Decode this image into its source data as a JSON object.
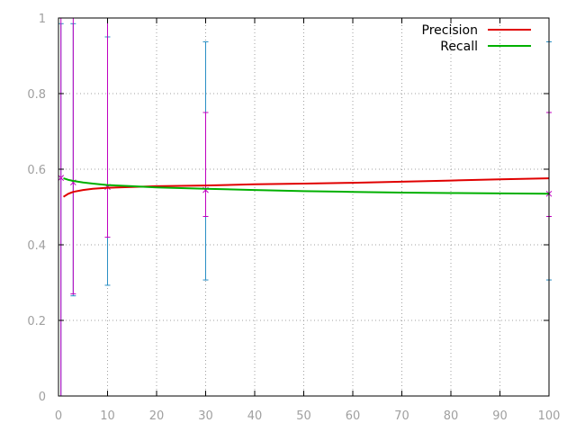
{
  "chart_data": {
    "type": "line",
    "title": "",
    "xlabel": "",
    "ylabel": "",
    "xlim": [
      0,
      100
    ],
    "ylim": [
      0,
      1
    ],
    "x_ticks": [
      0,
      10,
      20,
      30,
      40,
      50,
      60,
      70,
      80,
      90,
      100
    ],
    "y_ticks": [
      0,
      0.2,
      0.4,
      0.6,
      0.8,
      1
    ],
    "x_tick_labels": [
      "0",
      "10",
      "20",
      "30",
      "40",
      "50",
      "60",
      "70",
      "80",
      "90",
      "100"
    ],
    "y_tick_labels": [
      "0",
      "0.2",
      "0.4",
      "0.6",
      "0.8",
      "1"
    ],
    "grid": true,
    "grid_style": "dotted",
    "legend_position": "top-right",
    "series": [
      {
        "name": "Precision",
        "color": "#e00000",
        "x": [
          1,
          2,
          3,
          5,
          7,
          10,
          15,
          20,
          30,
          40,
          50,
          60,
          70,
          80,
          90,
          100
        ],
        "y": [
          0.527,
          0.535,
          0.54,
          0.545,
          0.548,
          0.551,
          0.553,
          0.555,
          0.557,
          0.56,
          0.562,
          0.564,
          0.567,
          0.57,
          0.573,
          0.576
        ]
      },
      {
        "name": "Recall",
        "color": "#00b000",
        "x": [
          1,
          2,
          3,
          5,
          7,
          10,
          15,
          20,
          30,
          40,
          50,
          60,
          70,
          80,
          90,
          100
        ],
        "y": [
          0.576,
          0.572,
          0.569,
          0.565,
          0.562,
          0.558,
          0.555,
          0.552,
          0.548,
          0.545,
          0.542,
          0.54,
          0.538,
          0.537,
          0.536,
          0.535
        ]
      }
    ],
    "error_bars": [
      {
        "color": "#2a8fc4",
        "points": [
          {
            "x": 0.5,
            "low": 0.0,
            "high": 0.985
          },
          {
            "x": 3,
            "low": 0.265,
            "high": 0.985
          },
          {
            "x": 10,
            "low": 0.293,
            "high": 0.95
          },
          {
            "x": 30,
            "low": 0.307,
            "high": 0.937
          },
          {
            "x": 100,
            "low": 0.307,
            "high": 0.937
          }
        ]
      },
      {
        "color": "#c000c0",
        "points": [
          {
            "x": 0.5,
            "y": 0.577,
            "low": 0.0,
            "high": 1.0
          },
          {
            "x": 3,
            "y": 0.565,
            "low": 0.27,
            "high": 1.0
          },
          {
            "x": 10,
            "y": 0.553,
            "low": 0.42,
            "high": 1.0
          },
          {
            "x": 30,
            "y": 0.545,
            "low": 0.475,
            "high": 0.75
          },
          {
            "x": 100,
            "y": 0.535,
            "low": 0.475,
            "high": 0.75
          }
        ]
      }
    ]
  }
}
